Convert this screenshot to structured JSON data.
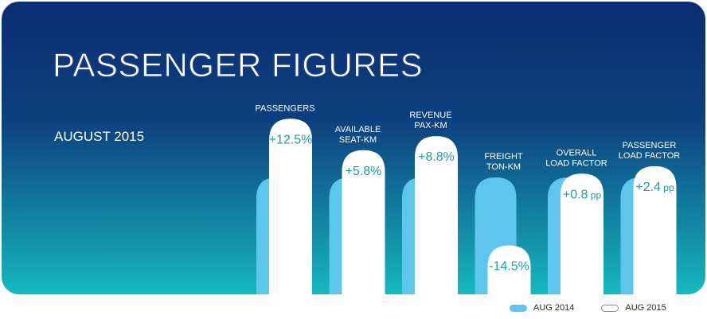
{
  "header": {
    "title": "PASSENGER FIGURES",
    "subtitle": "AUGUST 2015"
  },
  "colors": {
    "series_2014": "#5ec6ec",
    "series_2015": "#ffffff",
    "value_text": "#1aa0b0"
  },
  "chart_data": {
    "type": "bar",
    "categories": [
      [
        "PASSENGERS"
      ],
      [
        "AVAILABLE",
        "SEAT-KM"
      ],
      [
        "REVENUE",
        "PAX-KM"
      ],
      [
        "FREIGHT",
        "TON-KM"
      ],
      [
        "OVERALL",
        "LOAD FACTOR"
      ],
      [
        "PASSENGER",
        "LOAD FACTOR"
      ]
    ],
    "series": [
      {
        "name": "AUG 2014",
        "values": [
          100,
          100,
          100,
          100,
          100,
          100
        ]
      },
      {
        "name": "AUG 2015",
        "values": [
          112.5,
          105.8,
          108.8,
          85.5,
          100.8,
          102.4
        ]
      }
    ],
    "change_labels": [
      {
        "value": "+12.5%",
        "unit": ""
      },
      {
        "value": "+5.8%",
        "unit": ""
      },
      {
        "value": "+8.8%",
        "unit": ""
      },
      {
        "value": "-14.5%",
        "unit": ""
      },
      {
        "value": "+0.8",
        "unit": "pp"
      },
      {
        "value": "+2.4",
        "unit": "pp"
      }
    ],
    "legend": [
      "AUG 2014",
      "AUG 2015"
    ],
    "legend_position": "bottom-right",
    "grid": false
  }
}
